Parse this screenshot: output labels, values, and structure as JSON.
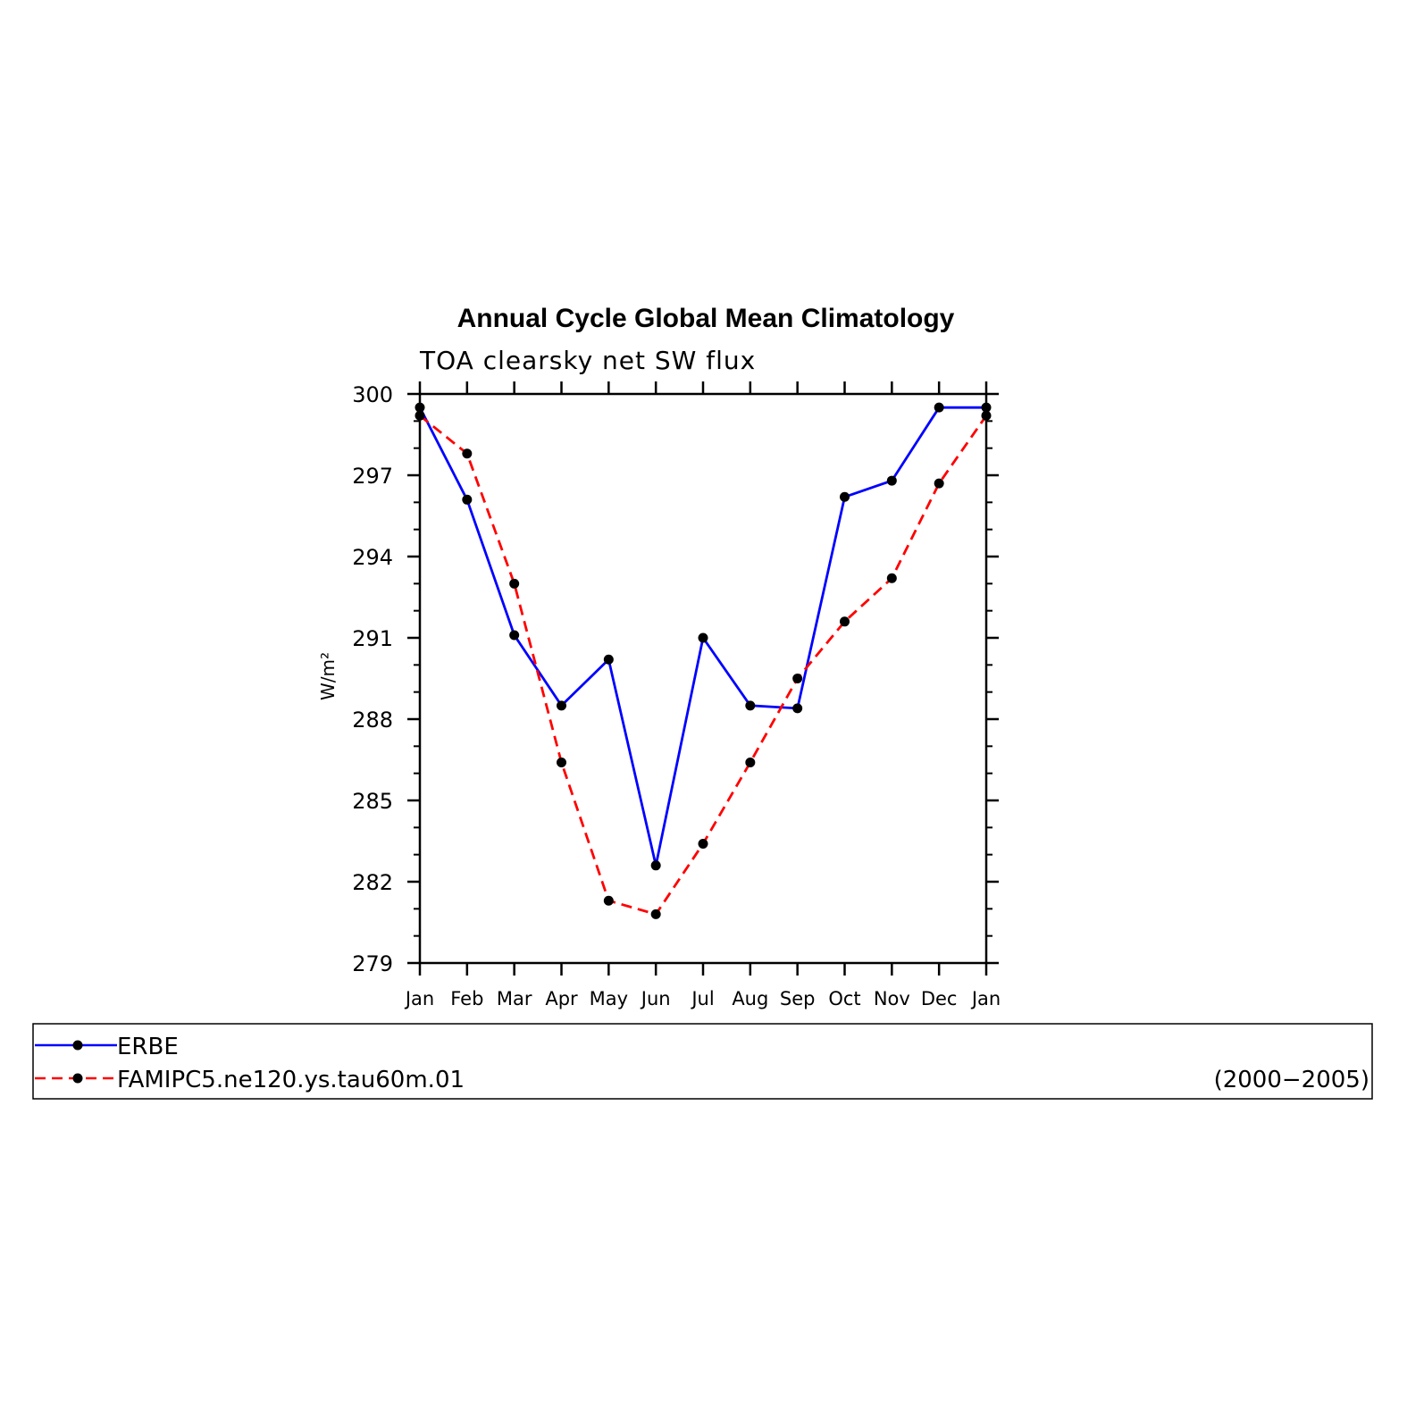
{
  "chart_data": {
    "type": "line",
    "title": "Annual Cycle Global Mean Climatology",
    "subtitle": "TOA clearsky net SW flux",
    "ylabel": "W/m²",
    "xlabel": "",
    "categories": [
      "Jan",
      "Feb",
      "Mar",
      "Apr",
      "May",
      "Jun",
      "Jul",
      "Aug",
      "Sep",
      "Oct",
      "Nov",
      "Dec",
      "Jan"
    ],
    "ylim": [
      279,
      300
    ],
    "yticks": [
      279,
      282,
      285,
      288,
      291,
      294,
      297,
      300
    ],
    "ytick_labels": [
      "279",
      "282",
      "285",
      "288",
      "291",
      "294",
      "297",
      "300"
    ],
    "grid": false,
    "legend_position": "bottom",
    "series": [
      {
        "name": "ERBE",
        "color": "#0000ff",
        "style": "solid",
        "values": [
          299.5,
          296.1,
          291.1,
          288.5,
          290.2,
          282.6,
          291.0,
          288.5,
          288.4,
          296.2,
          296.8,
          299.5,
          299.5
        ]
      },
      {
        "name": "FAMIPC5.ne120.ys.tau60m.01",
        "color": "#ff0000",
        "style": "dashed",
        "values": [
          299.2,
          297.8,
          293.0,
          286.4,
          281.3,
          280.8,
          283.4,
          286.4,
          289.5,
          291.6,
          293.2,
          296.7,
          299.2
        ]
      }
    ],
    "annotations": [
      "(2000−2005)"
    ]
  }
}
